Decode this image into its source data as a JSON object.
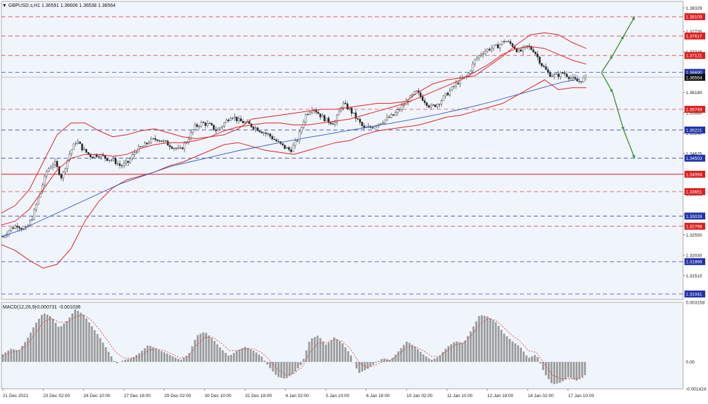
{
  "window": {
    "title_symbol": "GBPUSD.s,H1",
    "ohlc_text": "1.36591 1.36606 1.36538 1.36564",
    "menu_marker": "▼"
  },
  "colors": {
    "background": "#ffffff",
    "plot_bg": "#f0f5fc",
    "bollinger": "#e02020",
    "ma": "#3355cc",
    "candle": "#222222",
    "hline_red": "#e04040",
    "hline_blue": "#3344aa",
    "arrow": "#3a8a2a",
    "macd_bar": "#9a9a9a",
    "macd_signal": "#dd3333",
    "label_red_bg": "#dd2020",
    "label_blue_bg": "#2233aa",
    "label_current_bg": "#111111"
  },
  "chart_data": [
    {
      "type": "line",
      "kind": "candlestick_price_chart",
      "symbol": "GBPUSD.s",
      "timeframe": "H1",
      "ylim": [
        1.309,
        1.385
      ],
      "x_tick_labels": [
        "21 Dec 2021",
        "23 Dec 02:00",
        "24 Dec 10:00",
        "27 Dec 18:00",
        "29 Dec 02:00",
        "30 Dec 10:00",
        "31 Dec 18:00",
        "4 Jan 02:00",
        "5 Jan 10:00",
        "6 Jan 18:00",
        "10 Jan 02:00",
        "11 Jan 10:00",
        "12 Jan 18:00",
        "14 Jan 02:00",
        "17 Jan 10:00"
      ],
      "y_tick_labels": [
        "1.38329",
        "1.37735",
        "1.37215",
        "1.36180",
        "1.35660",
        "1.35140",
        "1.34625",
        "1.34105",
        "1.33585",
        "1.33070",
        "1.32550",
        "1.32030",
        "1.31510"
      ],
      "y_tick_values": [
        1.38329,
        1.37735,
        1.37215,
        1.3618,
        1.3566,
        1.3514,
        1.34625,
        1.34105,
        1.33585,
        1.3307,
        1.3255,
        1.3203,
        1.3151
      ],
      "horizontal_levels": [
        {
          "value": 1.38109,
          "label": "1.38109",
          "color": "red",
          "style": "dashed"
        },
        {
          "value": 1.37617,
          "label": "1.37617",
          "color": "red",
          "style": "dashed"
        },
        {
          "value": 1.37121,
          "label": "1.37121",
          "color": "red",
          "style": "dashed"
        },
        {
          "value": 1.3669,
          "label": "1.36690",
          "color": "blue",
          "style": "dashed"
        },
        {
          "value": 1.35749,
          "label": "1.35749",
          "color": "red",
          "style": "dashed"
        },
        {
          "value": 1.35221,
          "label": "1.35221",
          "color": "blue",
          "style": "dashed"
        },
        {
          "value": 1.34503,
          "label": "1.34503",
          "color": "blue",
          "style": "dashed"
        },
        {
          "value": 1.34094,
          "label": "1.34094",
          "color": "red",
          "style": "solid"
        },
        {
          "value": 1.33651,
          "label": "1.33651",
          "color": "red",
          "style": "dashed"
        },
        {
          "value": 1.33028,
          "label": "1.33028",
          "color": "blue",
          "style": "dashed"
        },
        {
          "value": 1.32768,
          "label": "1.32768",
          "color": "red",
          "style": "dashed"
        },
        {
          "value": 1.31866,
          "label": "1.31866",
          "color": "blue",
          "style": "dashed"
        },
        {
          "value": 1.31041,
          "label": "1.31041",
          "color": "blue",
          "style": "dashed"
        }
      ],
      "current_price": {
        "value": 1.36564,
        "label": "1.36564"
      },
      "close_path": [
        1.325,
        1.327,
        1.328,
        1.3265,
        1.33,
        1.336,
        1.342,
        1.344,
        1.34,
        1.346,
        1.3495,
        1.347,
        1.3455,
        1.346,
        1.345,
        1.3445,
        1.343,
        1.344,
        1.347,
        1.348,
        1.3495,
        1.35,
        1.349,
        1.348,
        1.347,
        1.3495,
        1.353,
        1.354,
        1.3535,
        1.352,
        1.354,
        1.356,
        1.3545,
        1.354,
        1.353,
        1.352,
        1.351,
        1.3495,
        1.348,
        1.347,
        1.35,
        1.356,
        1.358,
        1.356,
        1.3545,
        1.354,
        1.359,
        1.3575,
        1.355,
        1.3525,
        1.353,
        1.354,
        1.355,
        1.356,
        1.358,
        1.36,
        1.362,
        1.36,
        1.358,
        1.359,
        1.361,
        1.363,
        1.365,
        1.366,
        1.37,
        1.372,
        1.373,
        1.3735,
        1.375,
        1.374,
        1.372,
        1.3735,
        1.3725,
        1.369,
        1.3665,
        1.366,
        1.3668,
        1.3655,
        1.3645,
        1.3656
      ],
      "bollinger_upper": [
        1.331,
        1.333,
        1.337,
        1.344,
        1.351,
        1.354,
        1.354,
        1.352,
        1.3505,
        1.351,
        1.352,
        1.3525,
        1.3515,
        1.3505,
        1.35,
        1.3505,
        1.351,
        1.3525,
        1.355,
        1.3555,
        1.356,
        1.3565,
        1.357,
        1.3575,
        1.3575,
        1.358,
        1.3585,
        1.359,
        1.359,
        1.3595,
        1.362,
        1.364,
        1.365,
        1.3655,
        1.366,
        1.3685,
        1.371,
        1.374,
        1.3765,
        1.377,
        1.3765,
        1.3745,
        1.373
      ],
      "bollinger_middle": [
        1.328,
        1.329,
        1.332,
        1.337,
        1.342,
        1.345,
        1.346,
        1.346,
        1.3455,
        1.346,
        1.3475,
        1.3485,
        1.349,
        1.349,
        1.3495,
        1.3505,
        1.352,
        1.353,
        1.3535,
        1.354,
        1.354,
        1.3535,
        1.3535,
        1.354,
        1.3545,
        1.355,
        1.356,
        1.357,
        1.358,
        1.359,
        1.3605,
        1.362,
        1.3635,
        1.365,
        1.367,
        1.369,
        1.3715,
        1.373,
        1.3735,
        1.373,
        1.3715,
        1.37,
        1.369
      ],
      "bollinger_lower": [
        1.323,
        1.3215,
        1.319,
        1.317,
        1.318,
        1.322,
        1.329,
        1.334,
        1.3375,
        1.3395,
        1.3405,
        1.3415,
        1.343,
        1.344,
        1.3455,
        1.347,
        1.3485,
        1.349,
        1.348,
        1.347,
        1.3465,
        1.346,
        1.347,
        1.348,
        1.349,
        1.3495,
        1.351,
        1.352,
        1.3525,
        1.353,
        1.3535,
        1.3545,
        1.3555,
        1.356,
        1.357,
        1.358,
        1.359,
        1.361,
        1.363,
        1.365,
        1.3625,
        1.363,
        1.363
      ],
      "moving_average": [
        1.325,
        1.3265,
        1.3285,
        1.3305,
        1.3325,
        1.3345,
        1.3365,
        1.3385,
        1.34,
        1.3415,
        1.343,
        1.344,
        1.345,
        1.346,
        1.347,
        1.3478,
        1.3487,
        1.3495,
        1.3503,
        1.351,
        1.3518,
        1.3525,
        1.3533,
        1.354,
        1.3548,
        1.3556,
        1.3565,
        1.3575,
        1.3585,
        1.3596,
        1.3608,
        1.362,
        1.3632,
        1.3644,
        1.3652
      ],
      "projection": {
        "start": 1.3669,
        "up_targets": [
          1.3712,
          1.3762,
          1.3811
        ],
        "down_targets": [
          1.3618,
          1.3522,
          1.345
        ]
      }
    },
    {
      "type": "bar",
      "kind": "macd_histogram",
      "indicator_label": "MACD(12,26,9)",
      "indicator_values": [
        "-0.000731",
        "-0.001036"
      ],
      "ylim": [
        -0.001424,
        0.003158
      ],
      "y_tick_labels": [
        "0.003158",
        "0.00",
        "-0.001424"
      ],
      "y_tick_values": [
        0.003158,
        0.0,
        -0.001424
      ],
      "histogram": [
        0.0004,
        0.0007,
        0.0006,
        0.0012,
        0.002,
        0.0026,
        0.0024,
        0.0018,
        0.0022,
        0.0028,
        0.0025,
        0.0019,
        0.0013,
        0.0006,
        -0.0001,
        0.0001,
        0.0002,
        0.0005,
        0.0009,
        0.0007,
        0.0005,
        0.0003,
        0.0001,
        0.0004,
        0.0014,
        0.0016,
        0.0012,
        0.0007,
        0.0003,
        0.0006,
        0.0008,
        0.0006,
        0.0003,
        -0.0003,
        -0.0008,
        -0.0009,
        -0.0006,
        -0.0001,
        0.0012,
        0.0014,
        0.0009,
        0.0013,
        0.001,
        0.0004,
        -0.0006,
        -0.0004,
        -0.0001,
        0.0002,
        0.0001,
        0.0006,
        0.0011,
        0.0008,
        0.0004,
        0.0001,
        0.0003,
        0.0008,
        0.0011,
        0.001,
        0.0017,
        0.0025,
        0.0024,
        0.0021,
        0.0015,
        0.0011,
        0.0008,
        0.0002,
        0.0004,
        -0.0006,
        -0.0012,
        -0.0011,
        -0.0008,
        -0.001,
        -0.0007
      ],
      "signal": [
        0.0003,
        0.0005,
        0.0006,
        0.0009,
        0.0015,
        0.0021,
        0.0023,
        0.0021,
        0.0021,
        0.0024,
        0.0025,
        0.0022,
        0.0017,
        0.0011,
        0.0005,
        0.0002,
        0.0002,
        0.0003,
        0.0006,
        0.0007,
        0.0006,
        0.0004,
        0.0002,
        0.0003,
        0.0009,
        0.0013,
        0.0013,
        0.001,
        0.0006,
        0.0006,
        0.0007,
        0.0007,
        0.0005,
        0.0001,
        -0.0004,
        -0.0007,
        -0.0006,
        -0.0003,
        0.0005,
        0.001,
        0.001,
        0.0012,
        0.0011,
        0.0007,
        0.0,
        -0.0003,
        -0.0002,
        0.0,
        0.0001,
        0.0004,
        0.0008,
        0.0008,
        0.0006,
        0.0003,
        0.0003,
        0.0006,
        0.0009,
        0.001,
        0.0014,
        0.002,
        0.0023,
        0.0022,
        0.0018,
        0.0014,
        0.0011,
        0.0006,
        0.0005,
        -0.0001,
        -0.0007,
        -0.0009,
        -0.0009,
        -0.0009,
        -0.0008
      ]
    }
  ]
}
